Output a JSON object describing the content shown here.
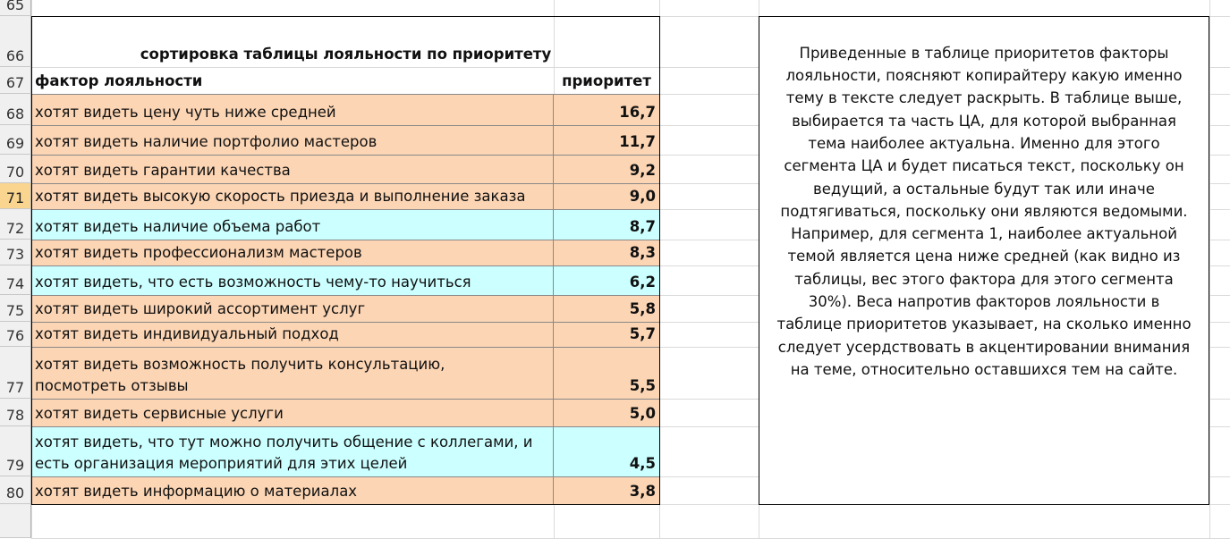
{
  "row_numbers": [
    "65",
    "66",
    "67",
    "68",
    "69",
    "70",
    "71",
    "72",
    "73",
    "74",
    "75",
    "76",
    "77",
    "78",
    "79",
    "80"
  ],
  "selected_row": "71",
  "table": {
    "title": "сортировка таблицы лояльности по приоритету",
    "header": [
      "фактор лояльности",
      "приоритет"
    ],
    "rows": [
      {
        "factor": [
          "хотят видеть цену чуть ниже средней"
        ],
        "priority": "16,7",
        "color": "#fcd5b4"
      },
      {
        "factor": [
          "хотят видеть наличие портфолио мастеров"
        ],
        "priority": "11,7",
        "color": "#fcd5b4"
      },
      {
        "factor": [
          "хотят видеть гарантии качества"
        ],
        "priority": "9,2",
        "color": "#fcd5b4"
      },
      {
        "factor": [
          "хотят видеть высокую скорость приезда и выполнение заказа"
        ],
        "priority": "9,0",
        "color": "#fcd5b4"
      },
      {
        "factor": [
          "хотят видеть наличие объема работ"
        ],
        "priority": "8,7",
        "color": "#ccffff"
      },
      {
        "factor": [
          "хотят видеть профессионализм мастеров"
        ],
        "priority": "8,3",
        "color": "#fcd5b4"
      },
      {
        "factor": [
          "хотят видеть, что есть возможность чему-то научиться"
        ],
        "priority": "6,2",
        "color": "#ccffff"
      },
      {
        "factor": [
          "хотят видеть широкий ассортимент услуг"
        ],
        "priority": "5,8",
        "color": "#fcd5b4"
      },
      {
        "factor": [
          "хотят видеть индивидуальный подход"
        ],
        "priority": "5,7",
        "color": "#fcd5b4"
      },
      {
        "factor": [
          "хотят видеть возможность получить консультацию,",
          "посмотреть отзывы"
        ],
        "priority": "5,5",
        "color": "#fcd5b4"
      },
      {
        "factor": [
          "хотят видеть сервисные услуги"
        ],
        "priority": "5,0",
        "color": "#fcd5b4"
      },
      {
        "factor": [
          "хотят видеть, что тут можно получить общение с коллегами, и",
          "есть организация мероприятий для этих целей"
        ],
        "priority": "4,5",
        "color": "#ccffff"
      },
      {
        "factor": [
          "хотят видеть информацию о материалах"
        ],
        "priority": "3,8",
        "color": "#fcd5b4"
      }
    ]
  },
  "note": {
    "lines": [
      "Приведенные в таблице приоритетов факторы",
      "лояльности, поясняют копирайтеру какую именно",
      "тему в тексте следует раскрыть. В таблице выше,",
      "выбирается та часть ЦА, для которой выбранная",
      "тема наиболее актуальна. Именно для этого",
      "сегмента ЦА и будет писаться текст, поскольку он",
      "ведущий, а остальные будут так или иначе",
      "подтягиваться, поскольку они являются ведомыми.",
      "Например, для сегмента 1, наиболее актуальной",
      "темой является цена ниже средней (как видно из",
      "таблицы, вес этого фактора для этого сегмента",
      "30%). Веса напротив факторов лояльности в",
      "таблице приоритетов указывает, на сколько именно",
      "следует  усердствовать в акцентировании внимания",
      "на теме, относительно оставшихся тем на сайте."
    ]
  }
}
